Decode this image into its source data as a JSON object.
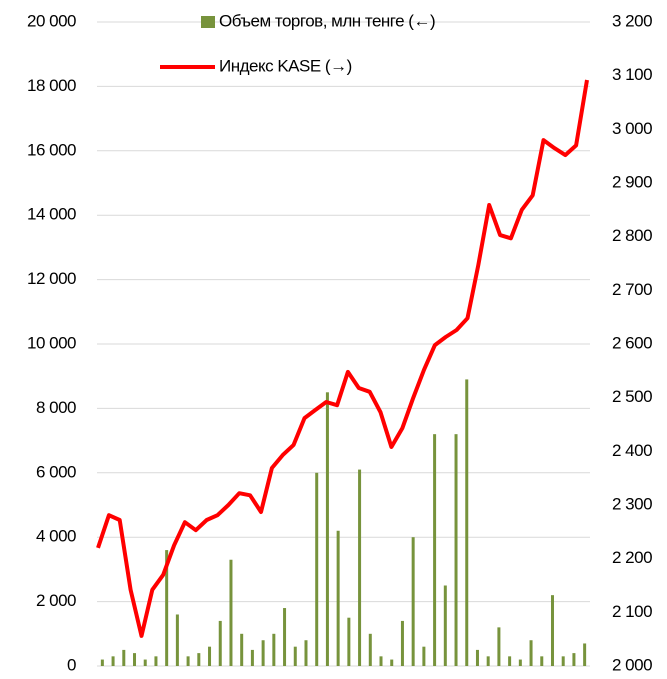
{
  "chart_data": {
    "type": "bar",
    "series": [
      {
        "name": "Объем торгов, млн тенге (←)",
        "type": "bar",
        "color": "#77933c",
        "values": [
          200,
          300,
          500,
          400,
          200,
          300,
          3600,
          1600,
          300,
          400,
          600,
          1400,
          3300,
          1000,
          500,
          800,
          1000,
          1800,
          600,
          800,
          6000,
          8500,
          4200,
          1500,
          6100,
          1000,
          300,
          200,
          1400,
          4000,
          600,
          7200,
          2500,
          7200,
          8900,
          500,
          300,
          1200,
          300,
          200,
          800,
          300,
          2200,
          300,
          400,
          700
        ]
      },
      {
        "name": "Индекс KASE (→)",
        "type": "line",
        "axis": "y2",
        "color": "#ff0000",
        "values": [
          2220,
          2281,
          2272,
          2142,
          2056,
          2142,
          2170,
          2225,
          2268,
          2253,
          2272,
          2281,
          2300,
          2322,
          2318,
          2287,
          2369,
          2393,
          2412,
          2462,
          2477,
          2492,
          2486,
          2548,
          2518,
          2511,
          2473,
          2408,
          2443,
          2499,
          2552,
          2598,
          2613,
          2626,
          2648,
          2747,
          2859,
          2803,
          2797,
          2850,
          2877,
          2980,
          2965,
          2952,
          2970,
          3092
        ]
      }
    ],
    "ylim": [
      0,
      20000
    ],
    "yticks": [
      0,
      {
        "value": 2000,
        "label": "2 000"
      },
      {
        "value": 4000,
        "label": "4 000"
      },
      {
        "value": 6000,
        "label": "6 000"
      },
      {
        "value": 8000,
        "label": "8 000"
      },
      {
        "value": 10000,
        "label": "10 000"
      },
      {
        "value": 12000,
        "label": "12 000"
      },
      {
        "value": 14000,
        "label": "14 000"
      },
      {
        "value": 16000,
        "label": "16 000"
      },
      {
        "value": 18000,
        "label": "18 000"
      },
      {
        "value": 20000,
        "label": "20 000"
      }
    ],
    "y2lim": [
      2000,
      3200
    ],
    "y2ticks": [
      {
        "value": 2000,
        "label": "2 000"
      },
      {
        "value": 2100,
        "label": "2 100"
      },
      {
        "value": 2200,
        "label": "2 200"
      },
      {
        "value": 2300,
        "label": "2 300"
      },
      {
        "value": 2400,
        "label": "2 400"
      },
      {
        "value": 2500,
        "label": "2 500"
      },
      {
        "value": 2600,
        "label": "2 600"
      },
      {
        "value": 2700,
        "label": "2 700"
      },
      {
        "value": 2800,
        "label": "2 800"
      },
      {
        "value": 2900,
        "label": "2 900"
      },
      {
        "value": 3000,
        "label": "3 000"
      },
      {
        "value": 3100,
        "label": "3 100"
      },
      {
        "value": 3200,
        "label": "3 200"
      }
    ],
    "grid": true
  }
}
